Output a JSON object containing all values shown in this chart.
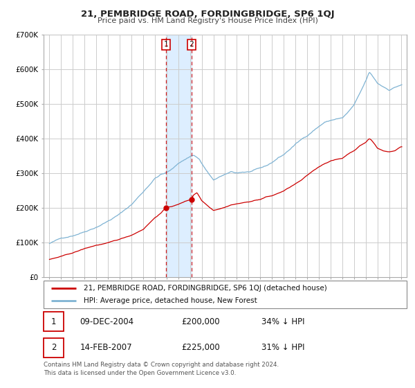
{
  "title": "21, PEMBRIDGE ROAD, FORDINGBRIDGE, SP6 1QJ",
  "subtitle": "Price paid vs. HM Land Registry's House Price Index (HPI)",
  "legend_line1": "21, PEMBRIDGE ROAD, FORDINGBRIDGE, SP6 1QJ (detached house)",
  "legend_line2": "HPI: Average price, detached house, New Forest",
  "transaction1_date": "09-DEC-2004",
  "transaction1_price": "£200,000",
  "transaction1_hpi": "34% ↓ HPI",
  "transaction2_date": "14-FEB-2007",
  "transaction2_price": "£225,000",
  "transaction2_hpi": "31% ↓ HPI",
  "footer": "Contains HM Land Registry data © Crown copyright and database right 2024.\nThis data is licensed under the Open Government Licence v3.0.",
  "red_color": "#cc0000",
  "blue_color": "#7fb3d3",
  "shade_color": "#ddeeff",
  "grid_color": "#cccccc",
  "ylim": [
    0,
    700000
  ],
  "yticks": [
    0,
    100000,
    200000,
    300000,
    400000,
    500000,
    600000,
    700000
  ],
  "ytick_labels": [
    "£0",
    "£100K",
    "£200K",
    "£300K",
    "£400K",
    "£500K",
    "£600K",
    "£700K"
  ],
  "transaction1_x": 2004.94,
  "transaction2_x": 2007.12,
  "transaction1_y": 200000,
  "transaction2_y": 225000,
  "vline1_x": 2004.94,
  "vline2_x": 2007.12,
  "xmin": 1994.5,
  "xmax": 2025.5
}
